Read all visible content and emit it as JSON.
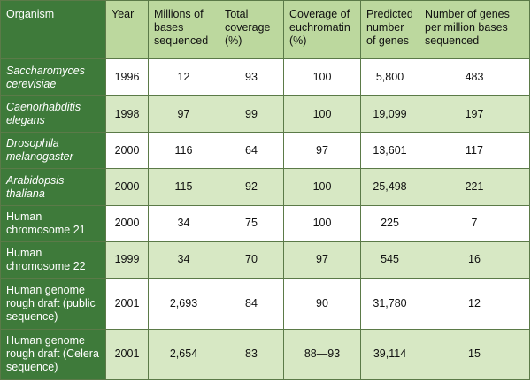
{
  "headers": [
    "Organism",
    "Year",
    "Millions of bases sequenced",
    "Total coverage (%)",
    "Coverage of euchromatin (%)",
    "Predicted number of genes",
    "Number of genes per million bases sequenced"
  ],
  "rows": [
    {
      "organism": "Saccharomyces cerevisiae",
      "italic": true,
      "year": "1996",
      "bases": "12",
      "total_coverage": "93",
      "euchromatin": "100",
      "genes": "5,800",
      "genes_per_mb": "483"
    },
    {
      "organism": "Caenorhabditis elegans",
      "italic": true,
      "year": "1998",
      "bases": "97",
      "total_coverage": "99",
      "euchromatin": "100",
      "genes": "19,099",
      "genes_per_mb": "197"
    },
    {
      "organism": "Drosophila melanogaster",
      "italic": true,
      "year": "2000",
      "bases": "116",
      "total_coverage": "64",
      "euchromatin": "97",
      "genes": "13,601",
      "genes_per_mb": "117"
    },
    {
      "organism": "Arabidopsis thaliana",
      "italic": true,
      "year": "2000",
      "bases": "115",
      "total_coverage": "92",
      "euchromatin": "100",
      "genes": "25,498",
      "genes_per_mb": "221"
    },
    {
      "organism": "Human chromosome 21",
      "italic": false,
      "year": "2000",
      "bases": "34",
      "total_coverage": "75",
      "euchromatin": "100",
      "genes": "225",
      "genes_per_mb": "7"
    },
    {
      "organism": "Human chromosome 22",
      "italic": false,
      "year": "1999",
      "bases": "34",
      "total_coverage": "70",
      "euchromatin": "97",
      "genes": "545",
      "genes_per_mb": "16"
    },
    {
      "organism": "Human genome rough draft (public sequence)",
      "italic": false,
      "year": "2001",
      "bases": "2,693",
      "total_coverage": "84",
      "euchromatin": "90",
      "genes": "31,780",
      "genes_per_mb": "12"
    },
    {
      "organism": "Human genome rough draft (Celera sequence)",
      "italic": false,
      "year": "2001",
      "bases": "2,654",
      "total_coverage": "83",
      "euchromatin": "88—93",
      "genes": "39,114",
      "genes_per_mb": "15"
    }
  ],
  "colors": {
    "organism_column": "#3e7a3a",
    "header_background": "#bcd89e",
    "shaded_row": "#d7e8c4",
    "border": "#5b7a48"
  }
}
